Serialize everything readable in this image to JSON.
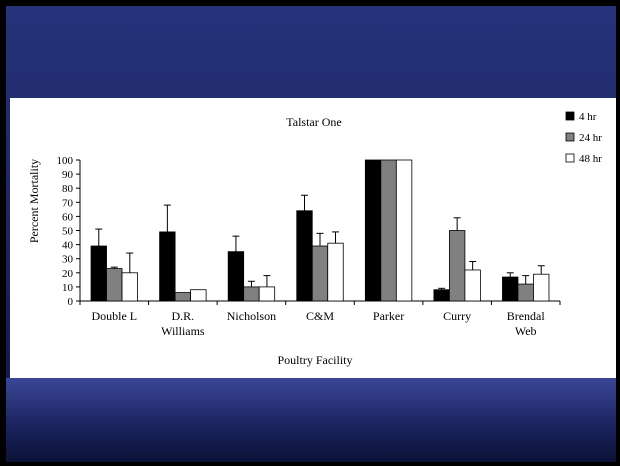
{
  "chart_data": {
    "type": "bar",
    "title": "Talstar One",
    "xlabel": "Poultry Facility",
    "ylabel": "Percent Mortality",
    "ylim": [
      0,
      100
    ],
    "yticks": [
      "0",
      "10",
      "20",
      "30",
      "40",
      "50",
      "60",
      "70",
      "80",
      "90",
      "100"
    ],
    "categories": [
      [
        "Double L"
      ],
      [
        "D.R.",
        "Williams"
      ],
      [
        "Nicholson"
      ],
      [
        "C&M"
      ],
      [
        "Parker"
      ],
      [
        "Curry"
      ],
      [
        "Brendal",
        "Web"
      ]
    ],
    "series": [
      {
        "name": "4 hr",
        "color": "#000000",
        "values": [
          39,
          49,
          35,
          64,
          100,
          8,
          17
        ],
        "error": [
          12,
          19,
          11,
          11,
          0,
          1,
          3
        ]
      },
      {
        "name": "24 hr",
        "color": "#808080",
        "values": [
          23,
          6,
          10,
          39,
          100,
          50,
          12
        ],
        "error": [
          1,
          0,
          4,
          9,
          0,
          9,
          6
        ]
      },
      {
        "name": "48 hr",
        "color": "#ffffff",
        "values": [
          20,
          8,
          10,
          41,
          100,
          22,
          19
        ],
        "error": [
          14,
          0,
          8,
          8,
          0,
          6,
          6
        ]
      }
    ],
    "legend_position": "top-right",
    "grid": false
  }
}
